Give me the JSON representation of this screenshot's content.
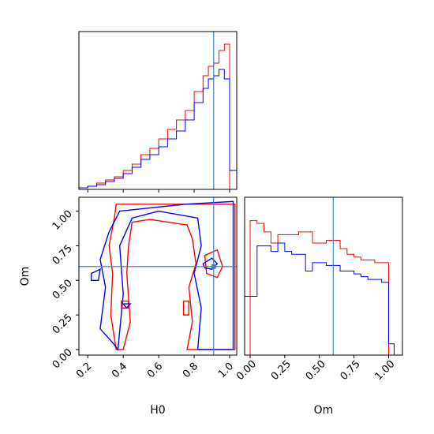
{
  "chart_data": {
    "type": "corner",
    "labels": {
      "x": "H0",
      "y": "Om"
    },
    "truth": {
      "H0": 0.91,
      "Om": 0.6
    },
    "colors": {
      "red": "#ff0000",
      "blue": "#0000ff",
      "truth": "#4682b4"
    },
    "ranges": {
      "H0": [
        0.15,
        1.04
      ],
      "Om": [
        -0.04,
        1.1
      ]
    },
    "h0_ticks": [
      "0.2",
      "0.4",
      "0.6",
      "0.8",
      "1.0"
    ],
    "om_ticks": [
      "0.00",
      "0.25",
      "0.50",
      "0.75",
      "1.00"
    ],
    "hist_h0": {
      "edges": [
        0.15,
        0.2,
        0.25,
        0.3,
        0.35,
        0.4,
        0.45,
        0.5,
        0.55,
        0.6,
        0.65,
        0.7,
        0.75,
        0.8,
        0.85,
        0.88,
        0.91,
        0.94,
        0.97,
        1.0,
        1.04
      ],
      "series": [
        {
          "color": "red",
          "values": [
            1,
            2,
            4,
            6,
            8,
            12,
            16,
            22,
            26,
            32,
            38,
            44,
            50,
            62,
            72,
            78,
            80,
            88,
            92,
            0
          ]
        },
        {
          "color": "blue",
          "values": [
            1,
            2,
            3,
            5,
            7,
            10,
            14,
            19,
            22,
            27,
            32,
            37,
            44,
            55,
            64,
            70,
            72,
            76,
            70,
            12
          ]
        }
      ]
    },
    "hist_om": {
      "edges": [
        -0.04,
        0.0,
        0.05,
        0.1,
        0.15,
        0.2,
        0.25,
        0.3,
        0.35,
        0.4,
        0.45,
        0.5,
        0.55,
        0.6,
        0.65,
        0.7,
        0.75,
        0.8,
        0.85,
        0.9,
        0.95,
        1.0,
        1.04
      ],
      "series": [
        {
          "color": "red",
          "values": [
            0,
            96,
            94,
            88,
            80,
            86,
            86,
            86,
            88,
            88,
            80,
            80,
            82,
            82,
            76,
            72,
            70,
            68,
            68,
            66,
            66,
            0
          ]
        },
        {
          "color": "blue",
          "values": [
            42,
            42,
            78,
            78,
            74,
            80,
            74,
            72,
            72,
            60,
            66,
            66,
            64,
            64,
            60,
            60,
            58,
            56,
            54,
            54,
            52,
            8
          ]
        }
      ]
    },
    "contours": [
      {
        "color": "red",
        "points": [
          [
            0.36,
            1.05
          ],
          [
            1.03,
            1.05
          ],
          [
            1.03,
            0.0
          ],
          [
            0.76,
            0.0
          ],
          [
            0.79,
            0.2
          ],
          [
            0.77,
            0.45
          ],
          [
            0.81,
            0.62
          ],
          [
            0.79,
            0.8
          ],
          [
            0.76,
            0.9
          ],
          [
            0.55,
            0.94
          ],
          [
            0.45,
            0.92
          ],
          [
            0.43,
            0.75
          ],
          [
            0.42,
            0.55
          ],
          [
            0.44,
            0.2
          ],
          [
            0.4,
            0.0
          ],
          [
            0.36,
            0.0
          ],
          [
            0.33,
            0.25
          ],
          [
            0.34,
            0.55
          ],
          [
            0.32,
            0.75
          ],
          [
            0.35,
            0.95
          ]
        ]
      },
      {
        "color": "blue",
        "points": [
          [
            0.38,
            1.0
          ],
          [
            0.75,
            1.05
          ],
          [
            1.02,
            1.07
          ],
          [
            1.02,
            0.0
          ],
          [
            0.82,
            0.0
          ],
          [
            0.84,
            0.3
          ],
          [
            0.8,
            0.55
          ],
          [
            0.84,
            0.75
          ],
          [
            0.82,
            0.95
          ],
          [
            0.6,
            1.0
          ],
          [
            0.45,
            0.95
          ],
          [
            0.38,
            0.75
          ],
          [
            0.4,
            0.4
          ],
          [
            0.37,
            0.0
          ],
          [
            0.34,
            0.05
          ],
          [
            0.27,
            0.15
          ],
          [
            0.3,
            0.45
          ],
          [
            0.27,
            0.65
          ],
          [
            0.32,
            0.85
          ]
        ]
      },
      {
        "color": "red",
        "points": [
          [
            0.86,
            0.68
          ],
          [
            0.93,
            0.72
          ],
          [
            0.96,
            0.6
          ],
          [
            0.93,
            0.52
          ],
          [
            0.87,
            0.55
          ]
        ]
      },
      {
        "color": "blue",
        "points": [
          [
            0.85,
            0.62
          ],
          [
            0.9,
            0.66
          ],
          [
            0.93,
            0.62
          ],
          [
            0.9,
            0.58
          ],
          [
            0.86,
            0.59
          ]
        ]
      },
      {
        "color": "red",
        "points": [
          [
            0.74,
            0.35
          ],
          [
            0.77,
            0.35
          ],
          [
            0.77,
            0.25
          ],
          [
            0.74,
            0.25
          ]
        ]
      },
      {
        "color": "red",
        "points": [
          [
            0.39,
            0.35
          ],
          [
            0.43,
            0.35
          ],
          [
            0.43,
            0.3
          ],
          [
            0.39,
            0.3
          ]
        ]
      },
      {
        "color": "blue",
        "points": [
          [
            0.4,
            0.33
          ],
          [
            0.44,
            0.33
          ],
          [
            0.42,
            0.3
          ]
        ]
      },
      {
        "color": "blue",
        "points": [
          [
            0.22,
            0.55
          ],
          [
            0.27,
            0.58
          ],
          [
            0.26,
            0.5
          ],
          [
            0.22,
            0.5
          ]
        ]
      }
    ]
  }
}
